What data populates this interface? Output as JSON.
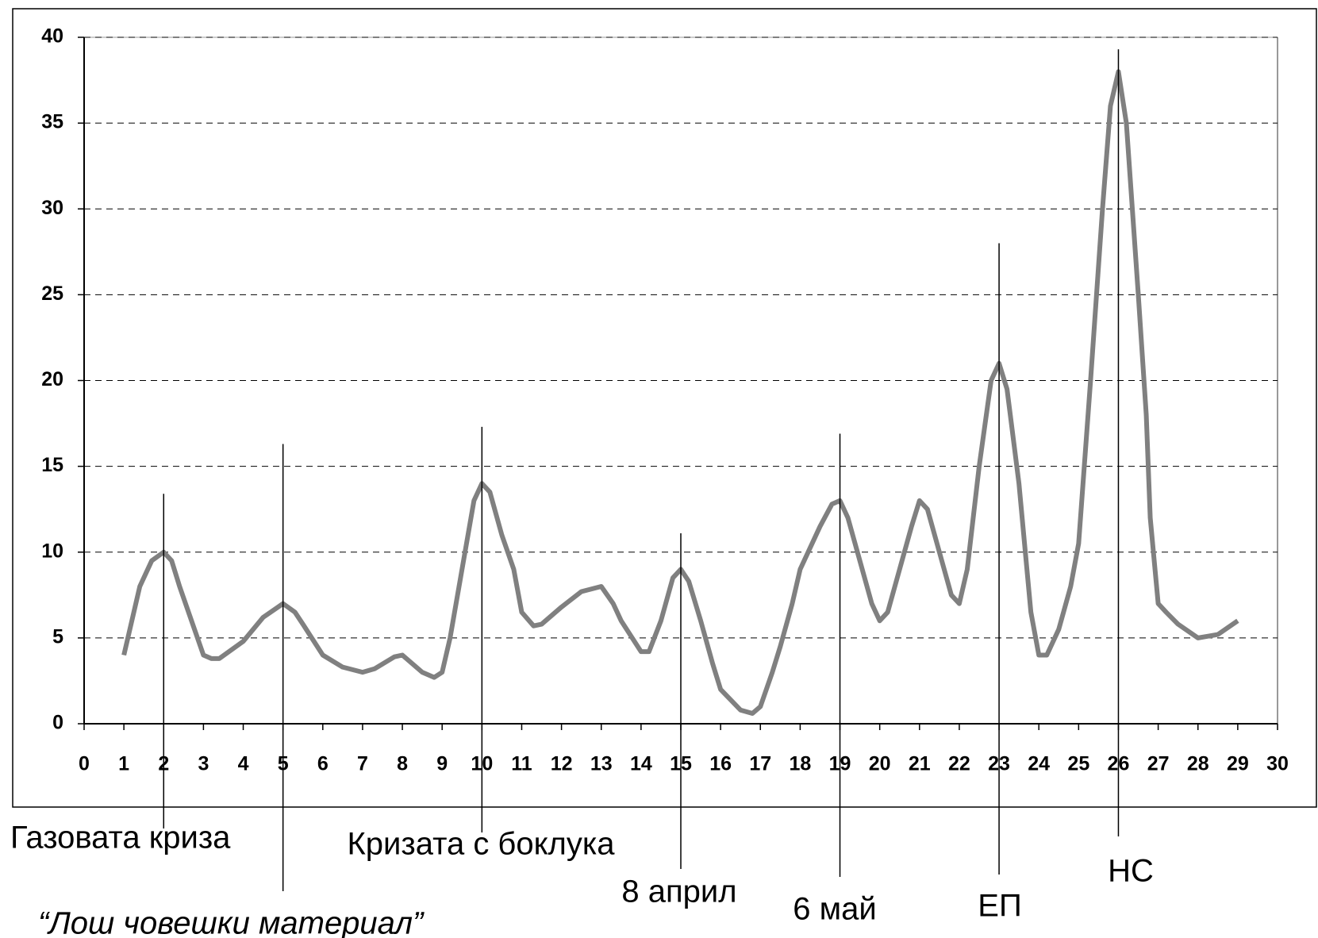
{
  "chart_data": {
    "type": "line",
    "series": [
      {
        "color": "#808080",
        "x": [
          1,
          1.2,
          1.4,
          1.7,
          2,
          2.2,
          2.4,
          2.7,
          3,
          3.2,
          3.4,
          4,
          4.5,
          5,
          5.3,
          5.5,
          6,
          6.5,
          7,
          7.3,
          7.8,
          8,
          8.5,
          8.8,
          9,
          9.2,
          9.5,
          9.8,
          10,
          10.2,
          10.5,
          10.8,
          11,
          11.3,
          11.5,
          12,
          12.5,
          13,
          13.3,
          13.5,
          14,
          14.2,
          14.5,
          14.8,
          15,
          15.2,
          15.5,
          15.8,
          16,
          16.5,
          16.8,
          17,
          17.3,
          17.5,
          17.8,
          18,
          18.5,
          18.8,
          19,
          19.2,
          19.5,
          19.8,
          20,
          20.2,
          20.5,
          20.8,
          21,
          21.2,
          21.5,
          21.8,
          22,
          22.2,
          22.5,
          22.8,
          23,
          23.2,
          23.5,
          23.8,
          24,
          24.2,
          24.5,
          24.8,
          25,
          25.3,
          25.6,
          25.8,
          26,
          26.2,
          26.5,
          26.7,
          26.8,
          27,
          27.2,
          27.5,
          28,
          28.5,
          29
        ],
        "values": [
          4,
          6,
          8,
          9.5,
          10,
          9.5,
          8,
          6,
          4,
          3.8,
          3.8,
          4.8,
          6.2,
          7,
          6.5,
          5.8,
          4,
          3.3,
          3,
          3.2,
          3.9,
          4,
          3,
          2.7,
          3,
          5,
          9,
          13,
          14,
          13.5,
          11,
          9,
          6.5,
          5.7,
          5.8,
          6.8,
          7.7,
          8,
          7,
          6,
          4.2,
          4.2,
          6,
          8.5,
          9,
          8.3,
          6,
          3.5,
          2,
          0.8,
          0.6,
          1,
          3,
          4.5,
          7,
          9,
          11.5,
          12.8,
          13,
          12,
          9.5,
          7,
          6,
          6.5,
          9,
          11.5,
          13,
          12.5,
          10,
          7.5,
          7,
          9,
          15,
          20,
          21,
          19.5,
          14,
          6.5,
          4,
          4,
          5.5,
          8,
          10.5,
          20,
          30,
          36,
          38,
          35,
          25,
          18,
          12,
          7,
          6.5,
          5.8,
          5,
          5.2,
          6
        ]
      }
    ],
    "xlim": [
      0,
      30
    ],
    "xticks": [
      0,
      1,
      2,
      3,
      4,
      5,
      6,
      7,
      8,
      9,
      10,
      11,
      12,
      13,
      14,
      15,
      16,
      17,
      18,
      19,
      20,
      21,
      22,
      23,
      24,
      25,
      26,
      27,
      28,
      29,
      30
    ],
    "ylim": [
      0,
      40
    ],
    "yticks": [
      0,
      5,
      10,
      15,
      20,
      25,
      30,
      35,
      40
    ],
    "grid": true,
    "annotations": [
      {
        "text": "Газовата криза",
        "x": 2,
        "y": 13.4
      },
      {
        "text": "“Лош човешки материал”",
        "x": 5,
        "y": 16.3
      },
      {
        "text": "Кризата с боклука",
        "x": 10,
        "y": 17.3
      },
      {
        "text": "8 април",
        "x": 15,
        "y": 11.1
      },
      {
        "text": "6 май",
        "x": 19,
        "y": 16.9
      },
      {
        "text": "ЕП",
        "x": 23,
        "y": 28
      },
      {
        "text": "НС",
        "x": 26,
        "y": 39.3
      }
    ]
  }
}
